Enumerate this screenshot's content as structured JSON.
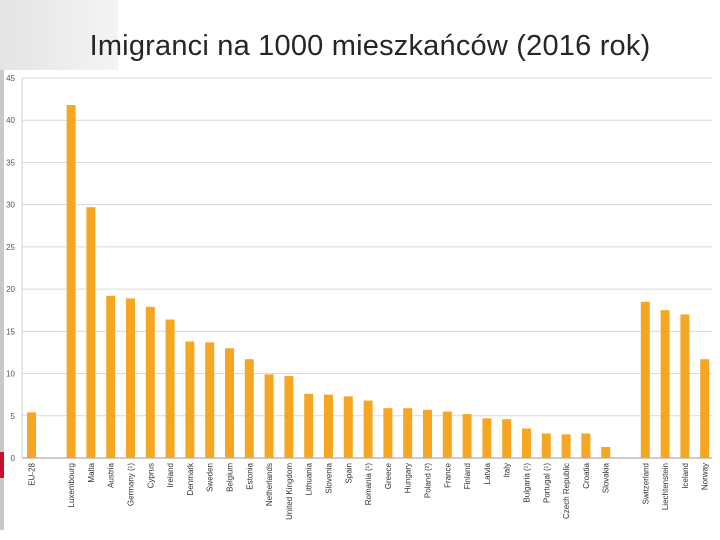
{
  "slide": {
    "title": "Imigranci na 1000 mieszkańców (2016 rok)"
  },
  "chart_data": {
    "type": "bar",
    "title": "Imigranci na 1000 mieszkańców (2016 rok)",
    "xlabel": "",
    "ylabel": "",
    "ylim": [
      0,
      45
    ],
    "yticks": [
      0,
      5,
      10,
      15,
      20,
      25,
      30,
      35,
      40,
      45
    ],
    "grid": "horizontal",
    "legend": "none",
    "bar_color": "#f5a623",
    "categories": [
      "EU-28",
      "",
      "Luxembourg",
      "Malta",
      "Austria",
      "Germany (¹)",
      "Cyprus",
      "Ireland",
      "Denmark",
      "Sweden",
      "Belgium",
      "Estonia",
      "Netherlands",
      "United Kingdom",
      "Lithuania",
      "Slovenia",
      "Spain",
      "Romania (¹)",
      "Greece",
      "Hungary",
      "Poland (²)",
      "France",
      "Finland",
      "Latvia",
      "Italy",
      "Bulgaria (¹)",
      "Portugal (¹)",
      "Czech Republic",
      "Croatia",
      "Slovakia",
      "",
      "Switzerland",
      "Liechtenstein",
      "Iceland",
      "Norway"
    ],
    "values": [
      5.4,
      null,
      41.8,
      29.7,
      19.2,
      18.9,
      17.9,
      16.4,
      13.8,
      13.7,
      13.0,
      11.7,
      9.9,
      9.7,
      7.6,
      7.5,
      7.3,
      6.8,
      5.9,
      5.9,
      5.7,
      5.5,
      5.2,
      4.7,
      4.6,
      3.5,
      2.9,
      2.8,
      2.9,
      1.3,
      null,
      18.5,
      17.5,
      17.0,
      11.7
    ]
  }
}
